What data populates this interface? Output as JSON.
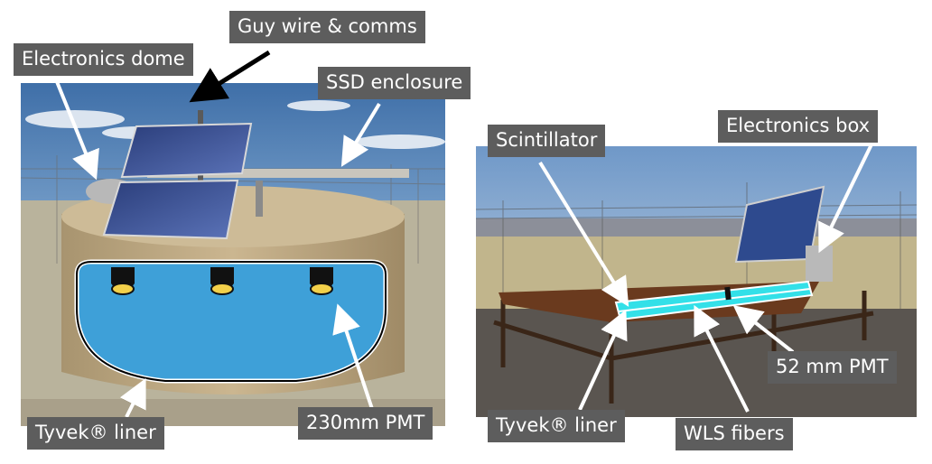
{
  "left_panel": {
    "labels": {
      "guy_wire": "Guy wire & comms",
      "electronics_dome": "Electronics dome",
      "ssd_enclosure": "SSD enclosure",
      "tyvek_liner": "Tyvek® liner",
      "pmt": "230mm PMT"
    },
    "colors": {
      "water": "#3ea0d8",
      "tank": "#c2ad8a",
      "pmt_face": "#f2d04a",
      "sky": "#4a7fb8"
    }
  },
  "right_panel": {
    "labels": {
      "scintillator": "Scintillator",
      "electronics_box": "Electronics box",
      "pmt": "52 mm PMT",
      "tyvek_liner": "Tyvek® liner",
      "wls_fibers": "WLS fibers"
    },
    "colors": {
      "scintillator": "#33e0e8",
      "enclosure": "#6a3a1e",
      "sky": "#7fa6d0"
    }
  },
  "label_style": {
    "background": "#5d5d5d",
    "text": "#ffffff",
    "arrow_dark": "#000000",
    "arrow_light": "#ffffff"
  }
}
